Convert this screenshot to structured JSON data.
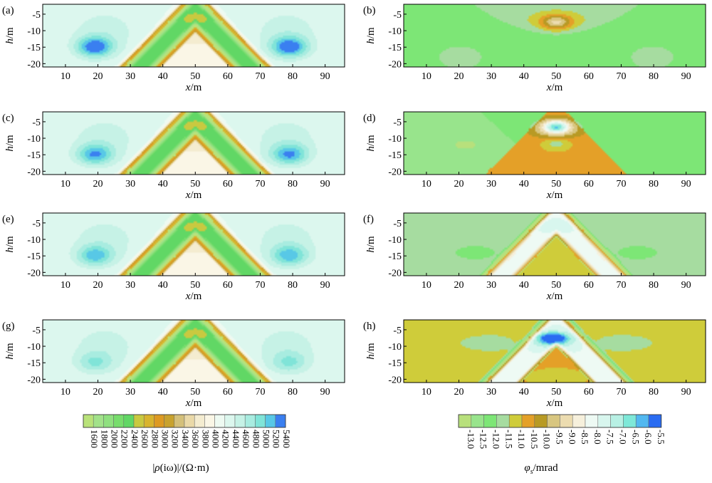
{
  "chart_data": {
    "type": "heatmap",
    "panels": [
      {
        "label": "(a)",
        "column": "left",
        "quantity": "amplitude",
        "variant": 1
      },
      {
        "label": "(b)",
        "column": "right",
        "quantity": "phase",
        "variant": 1
      },
      {
        "label": "(c)",
        "column": "left",
        "quantity": "amplitude",
        "variant": 2
      },
      {
        "label": "(d)",
        "column": "right",
        "quantity": "phase",
        "variant": 2
      },
      {
        "label": "(e)",
        "column": "left",
        "quantity": "amplitude",
        "variant": 3
      },
      {
        "label": "(f)",
        "column": "right",
        "quantity": "phase",
        "variant": 3
      },
      {
        "label": "(g)",
        "column": "left",
        "quantity": "amplitude",
        "variant": 4
      },
      {
        "label": "(h)",
        "column": "right",
        "quantity": "phase",
        "variant": 4
      }
    ],
    "xlabel": "x/m",
    "ylabel": "h/m",
    "xlim": [
      3,
      96
    ],
    "ylim": [
      -21,
      -2
    ],
    "xticks": [
      10,
      20,
      30,
      40,
      50,
      60,
      70,
      80,
      90
    ],
    "yticks": [
      -5,
      -10,
      -15,
      -20
    ],
    "amplitude_colorbar": {
      "label": "|ρ(iω)|/(Ω·m)",
      "levels": [
        "1600",
        "1800",
        "2000",
        "2200",
        "2400",
        "2600",
        "2800",
        "3000",
        "3200",
        "3400",
        "3600",
        "3800",
        "4000",
        "4200",
        "4400",
        "4600",
        "4800",
        "5000",
        "5200",
        "5400"
      ],
      "colors": [
        "#b9e27a",
        "#a2e28a",
        "#8fe07f",
        "#77dd6c",
        "#61d765",
        "#c9c940",
        "#d8b42e",
        "#dd9a22",
        "#c8a22e",
        "#d4c07a",
        "#ead9a8",
        "#f4ecd0",
        "#faf6e6",
        "#eefaf2",
        "#dcf7ee",
        "#c6f2e6",
        "#a8ece0",
        "#80e4d8",
        "#58c8e6",
        "#3a7ff0"
      ]
    },
    "phase_colorbar": {
      "label": "φs/mrad",
      "levels": [
        "-13.0",
        "-12.5",
        "-12.0",
        "-11.5",
        "-11.0",
        "-10.5",
        "-10.0",
        "-9.5",
        "-9.0",
        "-8.5",
        "-8.0",
        "-7.5",
        "-7.0",
        "-6.5",
        "-6.0",
        "-5.5"
      ],
      "colors": [
        "#b8e07c",
        "#98e48c",
        "#7de676",
        "#a6dca0",
        "#cfcc3a",
        "#e4a028",
        "#b89a24",
        "#d8c680",
        "#ecdcb0",
        "#f6f0dc",
        "#eefaf4",
        "#d8f6ee",
        "#b8f0e4",
        "#7ee8d8",
        "#52b8f0",
        "#2a6cf2"
      ]
    }
  }
}
